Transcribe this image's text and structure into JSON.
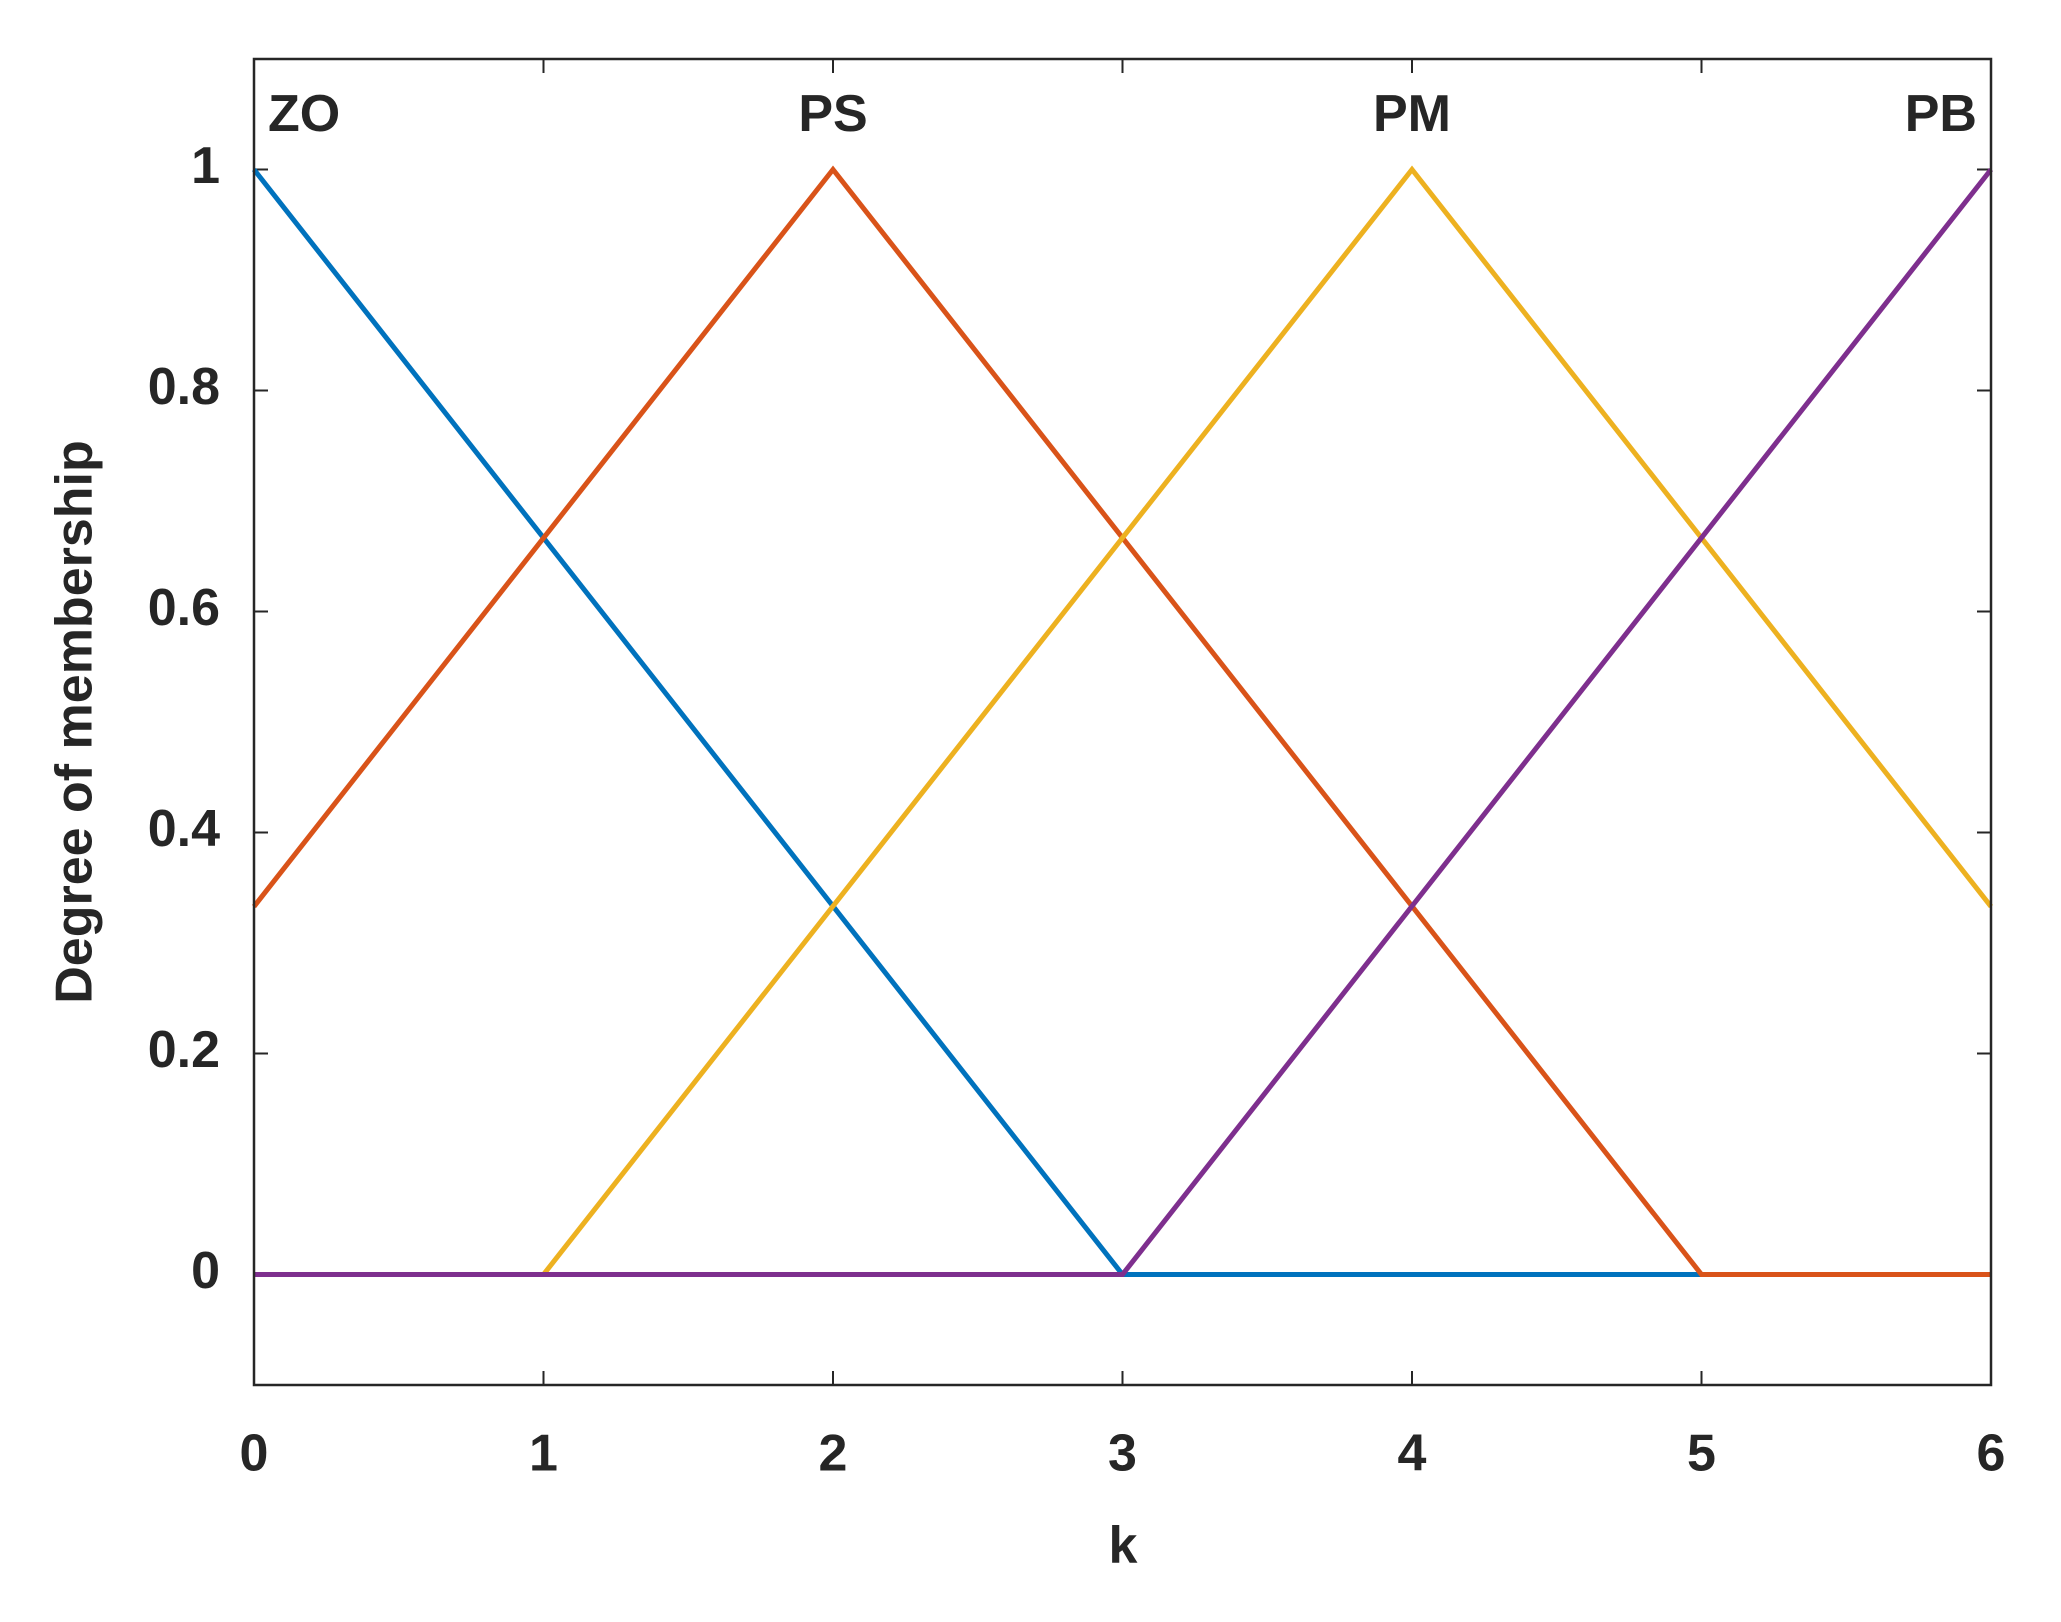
{
  "chart_data": {
    "type": "line",
    "x_label": "k",
    "y_label": "Degree of membership",
    "xlim": [
      0,
      6
    ],
    "xticks": [
      0,
      1,
      2,
      3,
      4,
      5,
      6
    ],
    "ylim": [
      -0.1,
      1.1
    ],
    "yticks": [
      0,
      0.2,
      0.4,
      0.6,
      0.8,
      1
    ],
    "grid": false,
    "series": [
      {
        "name": "ZO",
        "color": "#0072BD",
        "x": [
          0,
          3,
          6
        ],
        "values": [
          1,
          0,
          0
        ]
      },
      {
        "name": "PS",
        "color": "#D95319",
        "x": [
          0,
          2,
          5,
          6
        ],
        "values": [
          0.333,
          1,
          0,
          0
        ]
      },
      {
        "name": "PM",
        "color": "#EDB120",
        "x": [
          0,
          1,
          4,
          6
        ],
        "values": [
          0,
          0,
          1,
          0.333
        ]
      },
      {
        "name": "PB",
        "color": "#7E2F8E",
        "x": [
          0,
          3,
          6
        ],
        "values": [
          0,
          0,
          1
        ]
      }
    ]
  }
}
